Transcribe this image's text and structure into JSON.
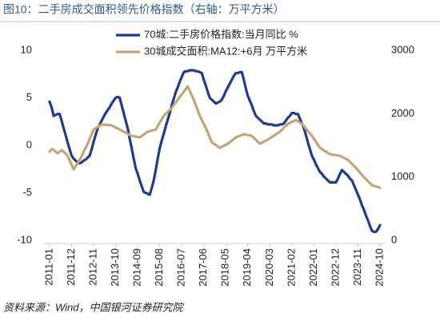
{
  "chart_data": {
    "type": "line",
    "title": "图10：二手房成交面积领先价格指数（右轴：万平方米）",
    "source": "资料来源：Wind，中国银河证券研究院",
    "categories": [
      "2011-01",
      null,
      null,
      null,
      null,
      null,
      null,
      null,
      null,
      null,
      null,
      "2011-12",
      null,
      null,
      null,
      null,
      null,
      null,
      null,
      null,
      null,
      null,
      "2012-11",
      null,
      null,
      null,
      null,
      null,
      null,
      null,
      null,
      null,
      null,
      "2013-10",
      null,
      null,
      null,
      null,
      null,
      null,
      null,
      null,
      null,
      null,
      "2014-09",
      null,
      null,
      null,
      null,
      null,
      null,
      null,
      null,
      null,
      null,
      "2015-08",
      null,
      null,
      null,
      null,
      null,
      null,
      null,
      null,
      null,
      null,
      "2016-07",
      null,
      null,
      null,
      null,
      null,
      null,
      null,
      null,
      null,
      null,
      "2017-06",
      null,
      null,
      null,
      null,
      null,
      null,
      null,
      null,
      null,
      null,
      "2018-05",
      null,
      null,
      null,
      null,
      null,
      null,
      null,
      null,
      null,
      null,
      "2019-04",
      null,
      null,
      null,
      null,
      null,
      null,
      null,
      null,
      null,
      null,
      "2020-03",
      null,
      null,
      null,
      null,
      null,
      null,
      null,
      null,
      null,
      null,
      "2021-02",
      null,
      null,
      null,
      null,
      null,
      null,
      null,
      null,
      null,
      null,
      "2022-01",
      null,
      null,
      null,
      null,
      null,
      null,
      null,
      null,
      null,
      null,
      "2022-12",
      null,
      null,
      null,
      null,
      null,
      null,
      null,
      null,
      null,
      null,
      "2023-11",
      null,
      null,
      null,
      null,
      null,
      null,
      null,
      null,
      null,
      null,
      "2024-10"
    ],
    "series": [
      {
        "name": "70城:二手房价格指数:当月同比 %",
        "color": "#1f3a93",
        "values": [
          4.6,
          4.0,
          3.1,
          3.2,
          3.3,
          3.3,
          2.6,
          1.8,
          1.1,
          0.3,
          -0.4,
          -1.1,
          -1.4,
          -1.6,
          -1.8,
          -1.9,
          -1.8,
          -1.6,
          -1.5,
          -1.3,
          -1.1,
          -0.4,
          0.4,
          1.1,
          1.8,
          2.2,
          2.6,
          3.0,
          3.4,
          3.7,
          4.0,
          4.4,
          4.7,
          5.0,
          5.1,
          5.0,
          4.2,
          3.4,
          2.6,
          1.8,
          0.7,
          -0.3,
          -1.4,
          -2.4,
          -3.0,
          -3.7,
          -4.3,
          -4.9,
          -5.0,
          -5.1,
          -5.2,
          -4.5,
          -3.7,
          -2.6,
          -1.4,
          -0.3,
          0.5,
          1.2,
          2.0,
          2.7,
          3.4,
          4.2,
          4.9,
          5.6,
          6.1,
          6.7,
          7.2,
          7.7,
          7.8,
          7.8,
          7.9,
          7.9,
          7.9,
          7.8,
          7.8,
          7.7,
          7.6,
          6.9,
          6.3,
          5.6,
          5.0,
          4.8,
          4.6,
          4.4,
          4.5,
          4.6,
          4.8,
          5.2,
          5.7,
          6.1,
          6.5,
          6.9,
          7.3,
          7.6,
          7.6,
          7.7,
          7.7,
          6.9,
          6.0,
          5.2,
          4.7,
          4.2,
          3.6,
          3.1,
          2.9,
          2.7,
          2.5,
          2.3,
          2.3,
          2.2,
          2.2,
          2.2,
          2.1,
          2.1,
          2.1,
          2.2,
          2.2,
          2.3,
          2.6,
          2.9,
          3.1,
          3.4,
          3.4,
          3.3,
          3.3,
          2.8,
          2.3,
          1.8,
          1.1,
          0.3,
          -0.4,
          -1.1,
          -1.5,
          -2.0,
          -2.4,
          -2.8,
          -3.0,
          -3.3,
          -3.5,
          -3.7,
          -3.9,
          -3.9,
          -3.9,
          -3.9,
          -3.5,
          -3.0,
          -2.6,
          -2.8,
          -3.0,
          -3.2,
          -3.5,
          -3.7,
          -4.2,
          -4.7,
          -5.2,
          -5.7,
          -6.3,
          -6.8,
          -7.4,
          -7.9,
          -8.5,
          -9.0,
          -9.1,
          -9.1,
          -8.8,
          -8.4
        ]
      },
      {
        "name": "30城成交面积:MA12:+6月 万平方米",
        "color": "#c4a573",
        "axis": "y2",
        "values": [
          1400,
          1440,
          1430,
          1400,
          1375,
          1400,
          1425,
          1400,
          1370,
          1335,
          1260,
          1190,
          1120,
          1170,
          1220,
          1270,
          1330,
          1400,
          1460,
          1525,
          1600,
          1675,
          1750,
          1770,
          1790,
          1810,
          1830,
          1827,
          1824,
          1821,
          1818,
          1815,
          1800,
          1780,
          1765,
          1750,
          1733,
          1716,
          1700,
          1683,
          1666,
          1650,
          1644,
          1638,
          1631,
          1625,
          1648,
          1670,
          1693,
          1715,
          1724,
          1733,
          1741,
          1750,
          1804,
          1858,
          1911,
          1965,
          1996,
          2028,
          2059,
          2090,
          2133,
          2177,
          2220,
          2262,
          2303,
          2345,
          2388,
          2430,
          2360,
          2290,
          2220,
          2135,
          2050,
          1965,
          1902,
          1838,
          1775,
          1700,
          1625,
          1550,
          1528,
          1505,
          1483,
          1460,
          1476,
          1493,
          1509,
          1525,
          1550,
          1575,
          1600,
          1625,
          1638,
          1650,
          1663,
          1675,
          1669,
          1663,
          1656,
          1650,
          1619,
          1588,
          1556,
          1525,
          1541,
          1558,
          1574,
          1590,
          1611,
          1632,
          1653,
          1674,
          1695,
          1715,
          1746,
          1778,
          1809,
          1840,
          1855,
          1870,
          1885,
          1900,
          1880,
          1860,
          1840,
          1802,
          1764,
          1726,
          1688,
          1650,
          1603,
          1555,
          1508,
          1460,
          1440,
          1420,
          1400,
          1380,
          1360,
          1355,
          1350,
          1345,
          1340,
          1335,
          1319,
          1303,
          1286,
          1270,
          1239,
          1208,
          1176,
          1145,
          1108,
          1070,
          1033,
          995,
          964,
          933,
          901,
          870,
          860,
          850,
          840,
          830
        ]
      }
    ],
    "ylim": [
      -10,
      10
    ],
    "yticks": [
      10,
      5,
      0,
      -5,
      -10
    ],
    "y2lim": [
      0,
      3000
    ],
    "y2ticks": [
      3000,
      2000,
      1000,
      0
    ],
    "legend": "top"
  }
}
